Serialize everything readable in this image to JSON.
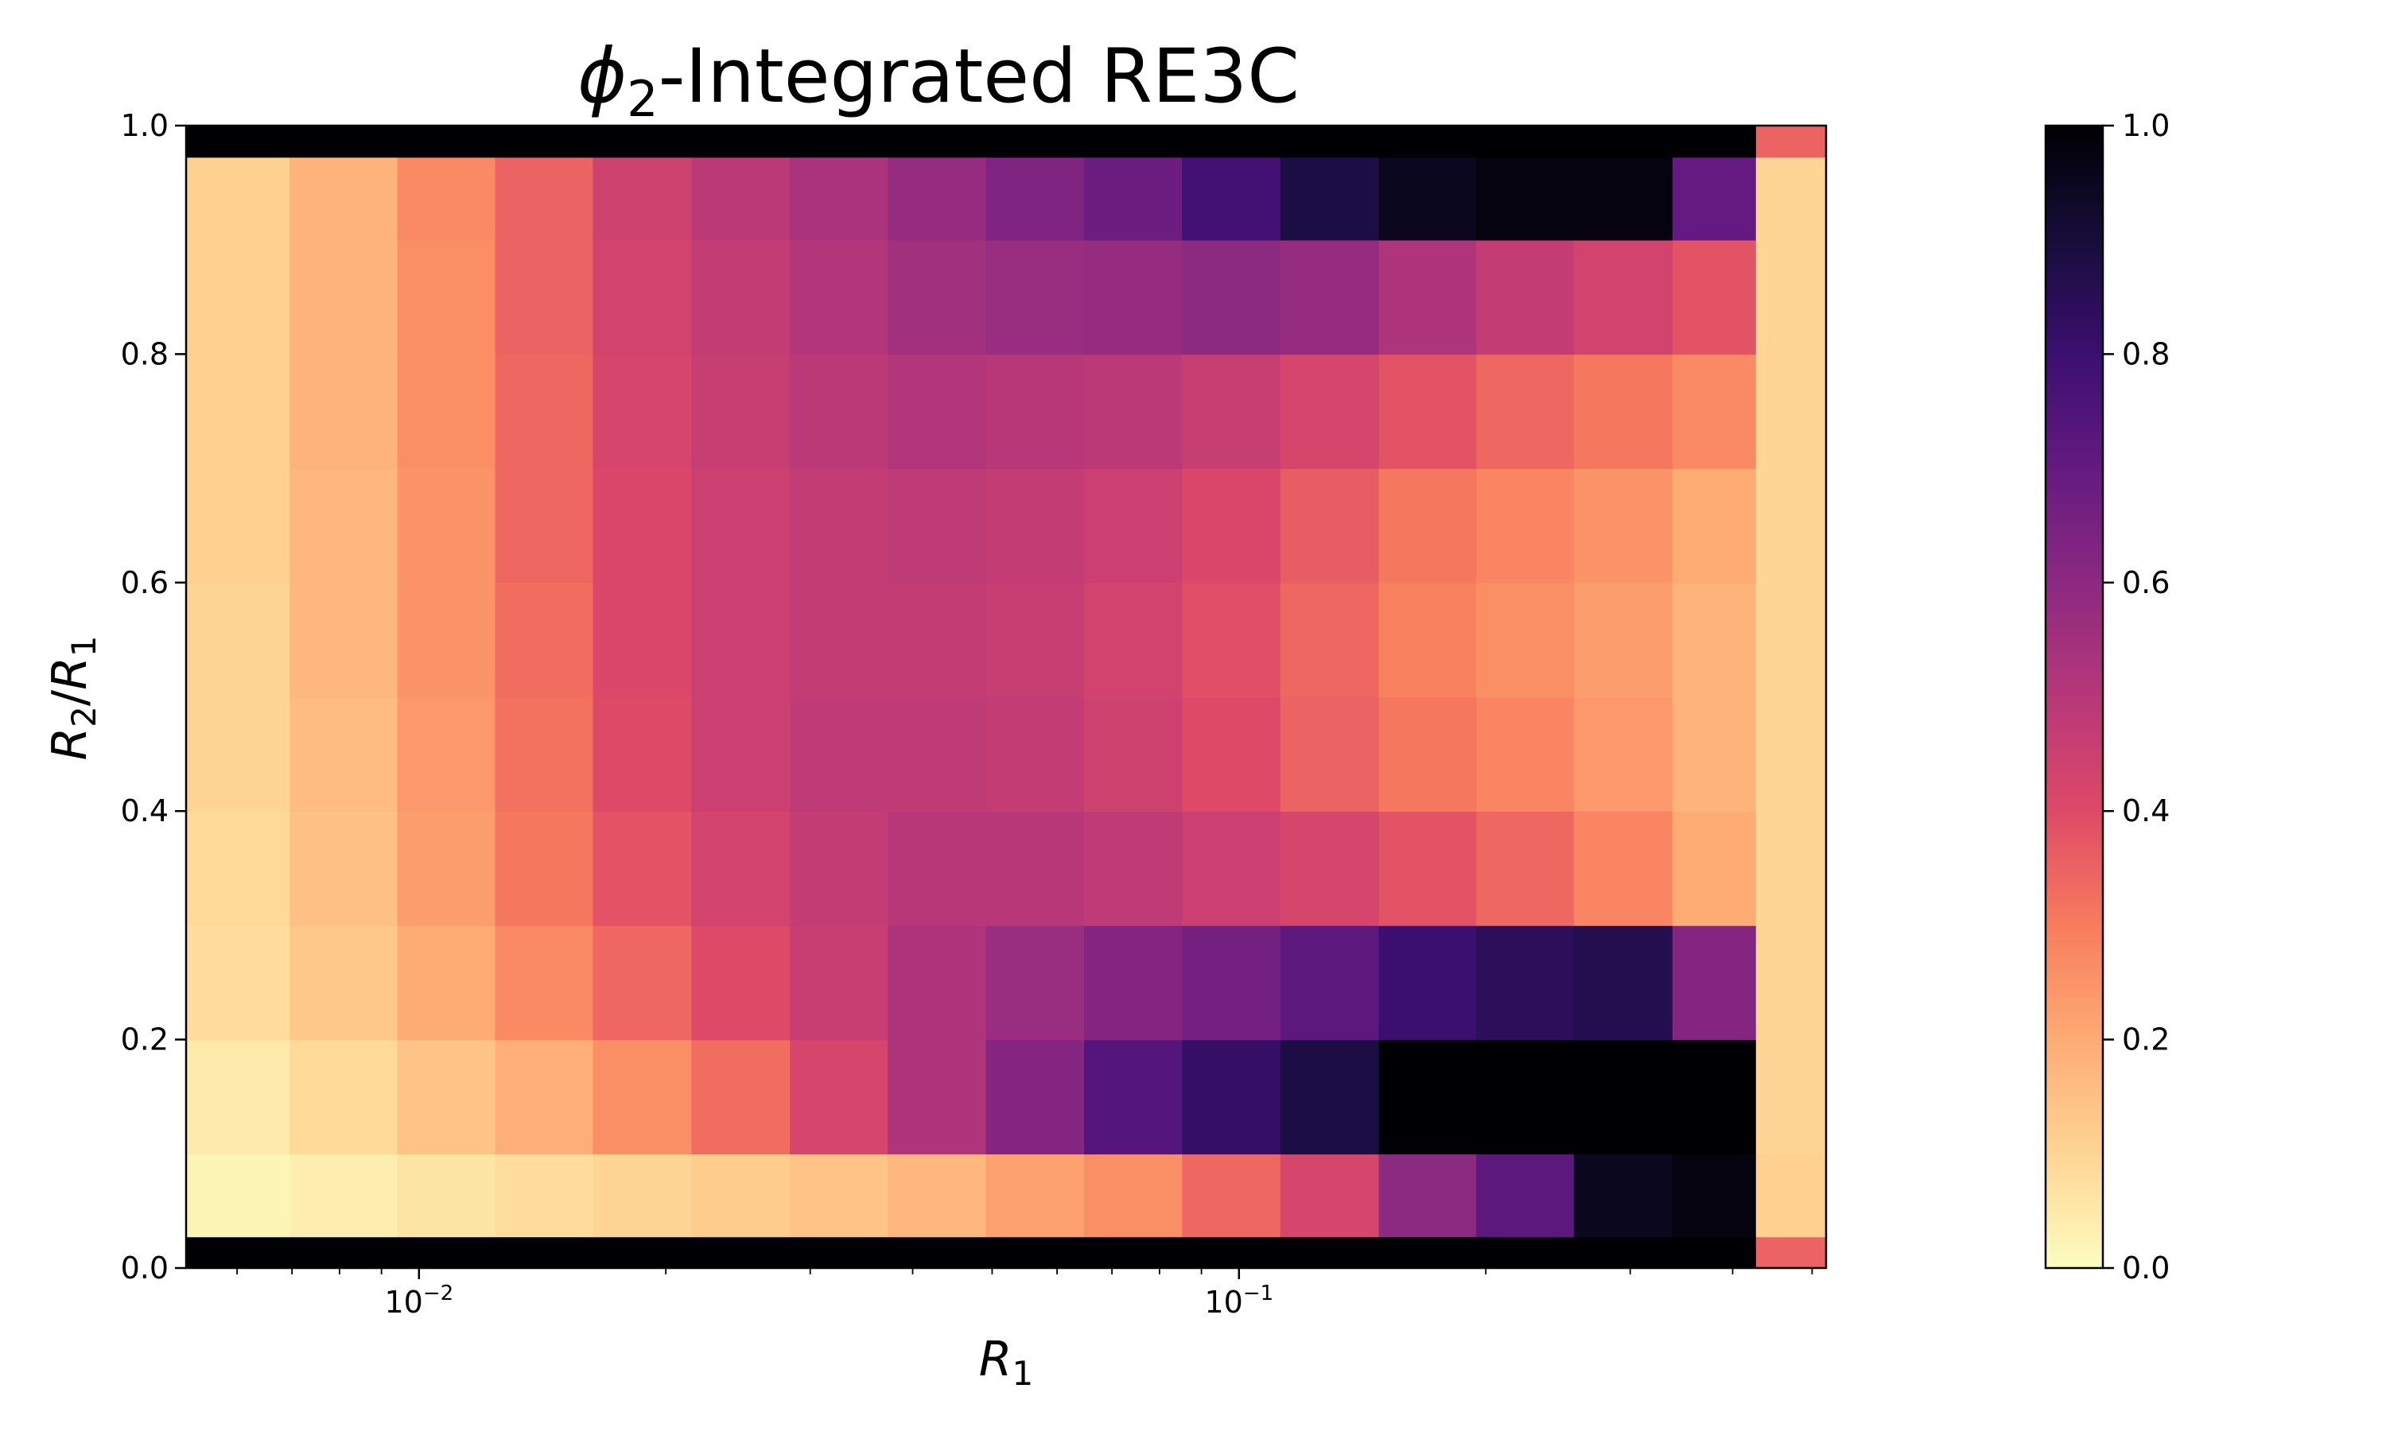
{
  "chart_data": {
    "type": "heatmap",
    "title": {
      "symbol": "ϕ",
      "subscript": "2",
      "rest": "-Integrated RE3C"
    },
    "xlabel": {
      "symbol": "R",
      "subscript": "1"
    },
    "ylabel": {
      "num": "R",
      "num_sub": "2",
      "slash": "/",
      "den": "R",
      "den_sub": "1"
    },
    "x_scale": "log",
    "x_range": [
      0.0052,
      0.52
    ],
    "x_ticks": [
      {
        "value": 0.01,
        "base": "10",
        "exp": "−2"
      },
      {
        "value": 0.1,
        "base": "10",
        "exp": "−1"
      }
    ],
    "y_range": [
      0.0,
      1.0
    ],
    "y_ticks": [
      "0.0",
      "0.2",
      "0.4",
      "0.6",
      "0.8",
      "1.0"
    ],
    "colormap": "magma_r",
    "colorbar": {
      "range": [
        0.0,
        1.0
      ],
      "ticks": [
        "0.0",
        "0.2",
        "0.4",
        "0.6",
        "0.8",
        "1.0"
      ]
    },
    "grid": false,
    "x_bin_centers": [
      0.0059,
      0.0082,
      0.0108,
      0.0142,
      0.0187,
      0.0247,
      0.0325,
      0.0428,
      0.0564,
      0.0743,
      0.0978,
      0.129,
      0.17,
      0.223,
      0.294,
      0.388,
      0.47
    ],
    "y_bin_centers": [
      0.005,
      0.05,
      0.15,
      0.25,
      0.35,
      0.45,
      0.55,
      0.65,
      0.75,
      0.85,
      0.95,
      0.995
    ],
    "values": [
      [
        1.0,
        1.0,
        1.0,
        1.0,
        1.0,
        1.0,
        1.0,
        1.0,
        1.0,
        1.0,
        1.0,
        1.0,
        1.0,
        1.0,
        1.0,
        1.0,
        0.35
      ],
      [
        0.02,
        0.04,
        0.06,
        0.08,
        0.1,
        0.12,
        0.14,
        0.17,
        0.22,
        0.26,
        0.34,
        0.42,
        0.6,
        0.72,
        0.95,
        0.98,
        0.11
      ],
      [
        0.05,
        0.09,
        0.14,
        0.19,
        0.26,
        0.33,
        0.42,
        0.52,
        0.62,
        0.74,
        0.82,
        0.88,
        1.0,
        1.0,
        1.0,
        1.0,
        0.1
      ],
      [
        0.08,
        0.13,
        0.2,
        0.27,
        0.34,
        0.4,
        0.46,
        0.52,
        0.57,
        0.62,
        0.66,
        0.72,
        0.8,
        0.84,
        0.86,
        0.62,
        0.1
      ],
      [
        0.09,
        0.15,
        0.23,
        0.31,
        0.38,
        0.43,
        0.47,
        0.5,
        0.5,
        0.48,
        0.45,
        0.42,
        0.38,
        0.34,
        0.28,
        0.2,
        0.1
      ],
      [
        0.1,
        0.16,
        0.24,
        0.32,
        0.4,
        0.45,
        0.48,
        0.48,
        0.47,
        0.44,
        0.4,
        0.35,
        0.31,
        0.28,
        0.24,
        0.18,
        0.1
      ],
      [
        0.1,
        0.17,
        0.25,
        0.33,
        0.41,
        0.45,
        0.47,
        0.47,
        0.46,
        0.43,
        0.39,
        0.34,
        0.29,
        0.26,
        0.23,
        0.18,
        0.1
      ],
      [
        0.11,
        0.17,
        0.25,
        0.34,
        0.41,
        0.45,
        0.47,
        0.48,
        0.47,
        0.45,
        0.41,
        0.36,
        0.31,
        0.28,
        0.25,
        0.2,
        0.1
      ],
      [
        0.11,
        0.18,
        0.26,
        0.34,
        0.42,
        0.46,
        0.49,
        0.51,
        0.5,
        0.49,
        0.46,
        0.42,
        0.38,
        0.34,
        0.31,
        0.27,
        0.1
      ],
      [
        0.11,
        0.18,
        0.26,
        0.35,
        0.43,
        0.47,
        0.51,
        0.55,
        0.57,
        0.58,
        0.6,
        0.58,
        0.52,
        0.47,
        0.43,
        0.38,
        0.1
      ],
      [
        0.11,
        0.18,
        0.27,
        0.35,
        0.44,
        0.49,
        0.53,
        0.58,
        0.63,
        0.68,
        0.78,
        0.88,
        0.95,
        0.98,
        0.98,
        0.7,
        0.1
      ],
      [
        1.0,
        1.0,
        1.0,
        1.0,
        1.0,
        1.0,
        1.0,
        1.0,
        1.0,
        1.0,
        1.0,
        1.0,
        1.0,
        1.0,
        1.0,
        1.0,
        0.35
      ]
    ]
  }
}
